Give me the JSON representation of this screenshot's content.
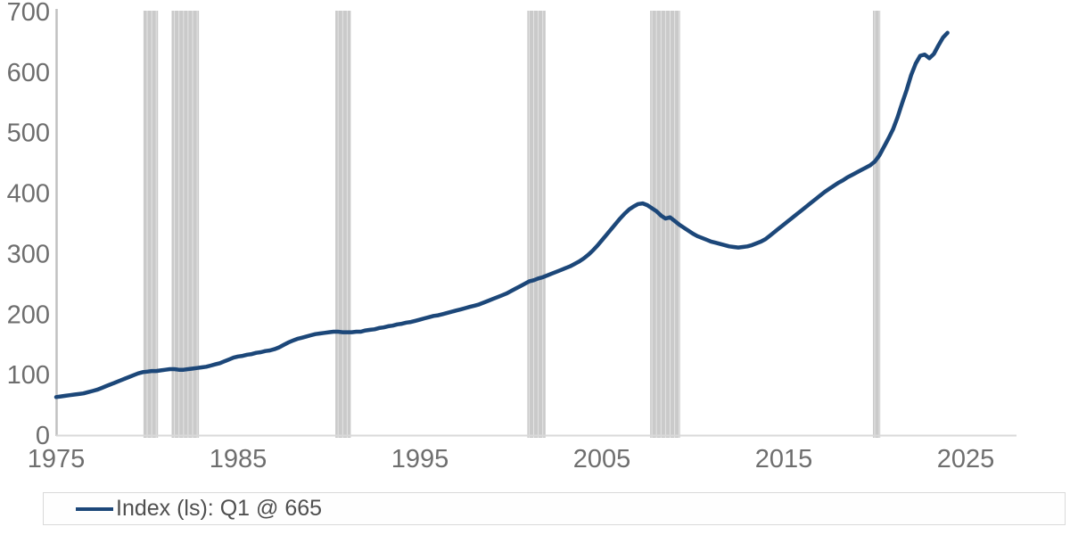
{
  "legend": {
    "label": "Index (ls): Q1 @ 665"
  },
  "colors": {
    "background": "#ffffff",
    "line": "#1c4779",
    "recession_band": "#cacaca",
    "band_seam": "rgba(255,255,255,0.5)",
    "y_axis_line": "#c1c1c1",
    "x_axis_line": "#d9d9d9",
    "tick_text": "#6e6e6e",
    "legend_text": "#4f4f4f",
    "legend_border": "#d9d9d9"
  },
  "chart_data": {
    "type": "line",
    "title": "",
    "xlabel": "",
    "ylabel": "",
    "grid": "off",
    "legend_position": "bottom-left",
    "x_axis": {
      "ticks": [
        1975,
        1985,
        1995,
        2005,
        2015,
        2025
      ],
      "min": 1975
    },
    "y_axis": {
      "min": 0,
      "max": 700,
      "tick_step": 100,
      "ticks": [
        0,
        100,
        200,
        300,
        400,
        500,
        600,
        700
      ]
    },
    "recession_bands": [
      [
        1979.8,
        1980.6
      ],
      [
        1981.35,
        1982.85
      ],
      [
        1990.35,
        1991.2
      ],
      [
        2000.9,
        2001.9
      ],
      [
        2007.65,
        2009.3
      ],
      [
        2019.9,
        2020.3
      ]
    ],
    "series": [
      {
        "name": "Index (ls)",
        "frequency": "quarterly",
        "start_year": 1975,
        "interval_years": 0.25,
        "last_point_label": "Q1 @ 665",
        "values": [
          63,
          64,
          65,
          66,
          67,
          68,
          69,
          71,
          73,
          75,
          78,
          81,
          84,
          87,
          90,
          93,
          96,
          99,
          102,
          104,
          105,
          106,
          106,
          107,
          108,
          109,
          109,
          108,
          108,
          109,
          110,
          111,
          112,
          113,
          115,
          117,
          119,
          122,
          125,
          128,
          130,
          131,
          133,
          134,
          136,
          137,
          139,
          140,
          142,
          145,
          149,
          153,
          156,
          159,
          161,
          163,
          165,
          167,
          168,
          169,
          170,
          171,
          171,
          170,
          170,
          170,
          171,
          171,
          173,
          174,
          175,
          177,
          178,
          180,
          181,
          183,
          184,
          186,
          187,
          189,
          191,
          193,
          195,
          197,
          198,
          200,
          202,
          204,
          206,
          208,
          210,
          212,
          214,
          216,
          219,
          222,
          225,
          228,
          231,
          234,
          238,
          242,
          246,
          250,
          254,
          256,
          259,
          261,
          264,
          267,
          270,
          273,
          276,
          279,
          283,
          287,
          292,
          298,
          305,
          313,
          322,
          331,
          340,
          349,
          358,
          366,
          373,
          378,
          382,
          383,
          380,
          375,
          370,
          363,
          358,
          360,
          354,
          348,
          343,
          338,
          333,
          329,
          326,
          323,
          320,
          318,
          316,
          314,
          312,
          311,
          310,
          311,
          312,
          314,
          317,
          320,
          324,
          330,
          336,
          342,
          348,
          354,
          360,
          366,
          372,
          378,
          384,
          390,
          396,
          402,
          407,
          412,
          417,
          421,
          426,
          430,
          434,
          438,
          442,
          446,
          452,
          462,
          476,
          490,
          505,
          525,
          548,
          570,
          595,
          614,
          627,
          629,
          623,
          630,
          644,
          657,
          665
        ]
      }
    ]
  }
}
